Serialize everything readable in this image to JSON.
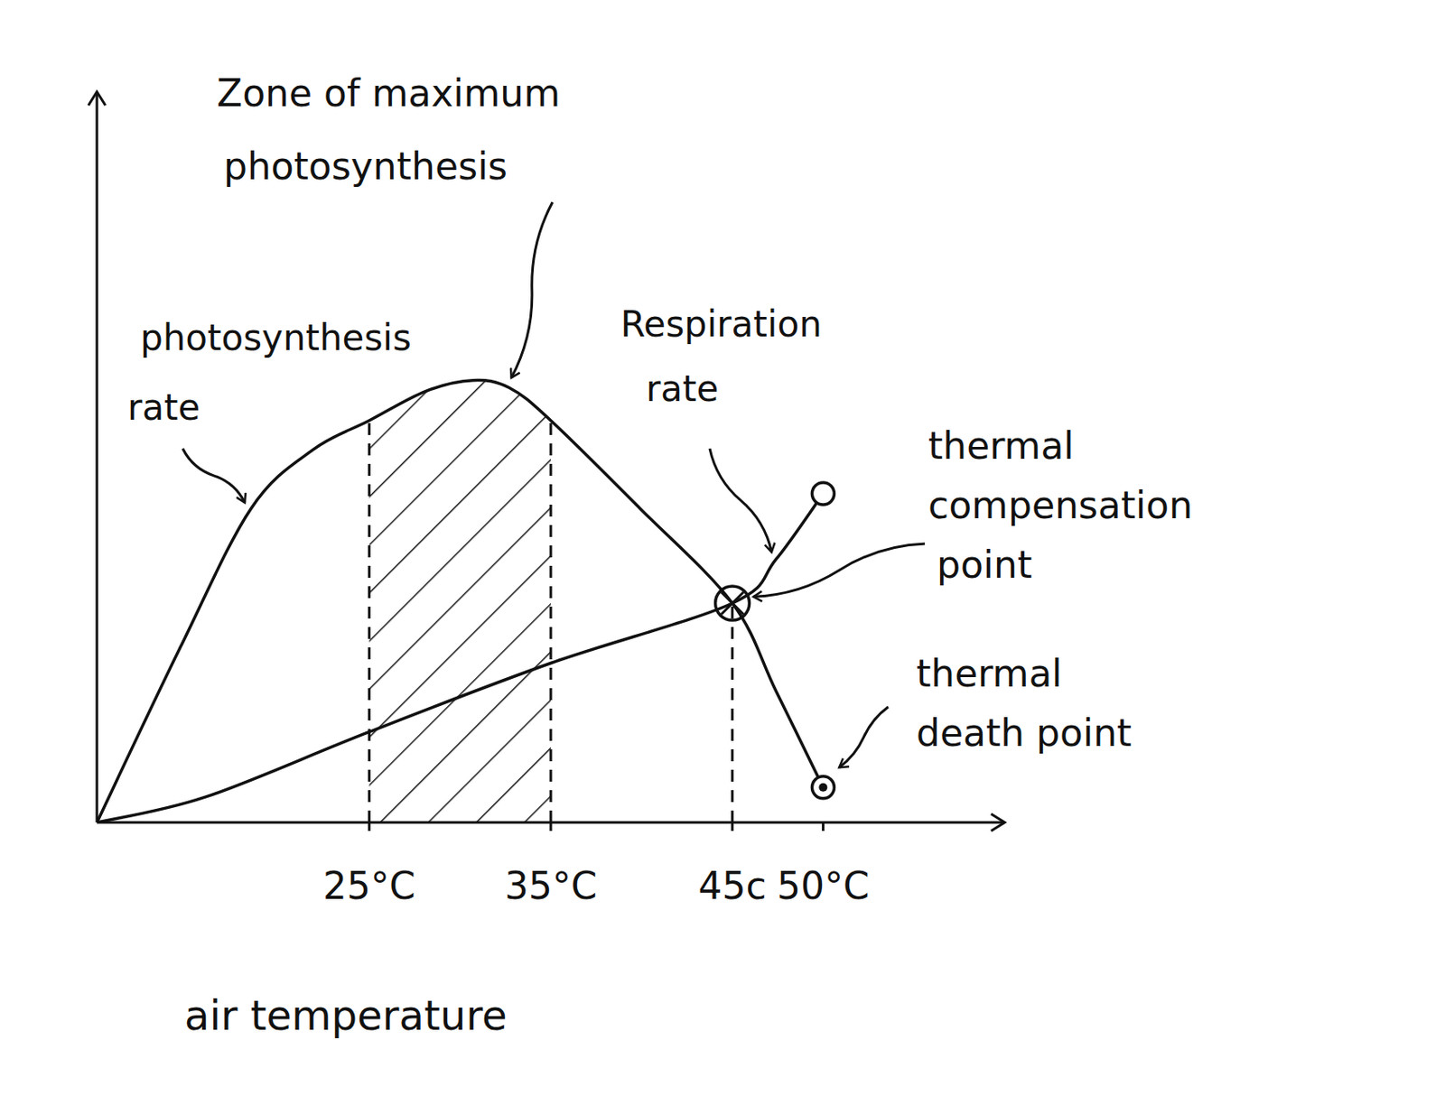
{
  "chart_data": {
    "type": "line",
    "x_label": "air temperature",
    "xlim": [
      10,
      60
    ],
    "ylim": [
      0,
      100
    ],
    "xticks": [
      {
        "value": 25,
        "label": "25°C"
      },
      {
        "value": 35,
        "label": "35°C"
      },
      {
        "value": 45,
        "label": "45c"
      },
      {
        "value": 50,
        "label": "50°C"
      }
    ],
    "tick_labels": "x",
    "grid": false,
    "color": "#111111",
    "series": [
      {
        "name": "photosynthesis\nrate",
        "color": "#111111",
        "x": [
          10,
          14.6,
          18.5,
          21.9,
          25,
          28.1,
          30.7,
          32.7,
          35,
          39.9,
          45,
          47.4,
          50
        ],
        "values": [
          0,
          24,
          43,
          51,
          55,
          59,
          60.5,
          59.5,
          55,
          43,
          30,
          18,
          4.8
        ]
      },
      {
        "name": "Respiration\nrate",
        "color": "#111111",
        "x": [
          10,
          16,
          25,
          35,
          45,
          47.4,
          50
        ],
        "values": [
          0,
          3.5,
          12.4,
          21.8,
          30,
          36,
          45
        ]
      }
    ],
    "zone": {
      "label": "Zone of maximum\nphotosynthesis",
      "x_range": [
        25,
        35
      ]
    },
    "annotations": [
      {
        "label": "thermal\ncompensation\npoint",
        "x": 45,
        "y": 30
      },
      {
        "label": "thermal\ndeath point",
        "x": 50,
        "y": 4.8
      }
    ]
  }
}
